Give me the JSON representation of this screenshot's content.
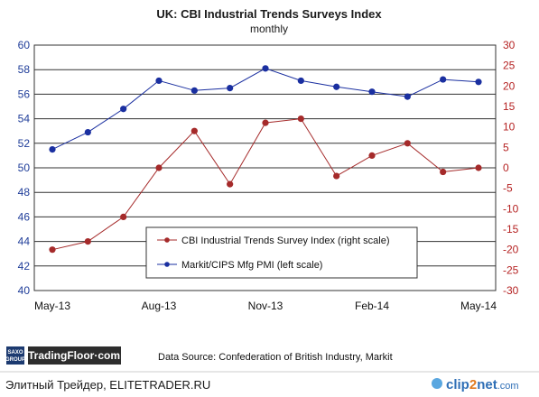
{
  "chart_data": {
    "type": "line",
    "title": "UK: CBI Industrial Trends Surveys Index",
    "subtitle": "monthly",
    "x": [
      "May-13",
      "Jun-13",
      "Jul-13",
      "Aug-13",
      "Sep-13",
      "Oct-13",
      "Nov-13",
      "Dec-13",
      "Jan-14",
      "Feb-14",
      "Mar-14",
      "Apr-14",
      "May-14"
    ],
    "x_tick_labels": [
      "May-13",
      "Aug-13",
      "Nov-13",
      "Feb-14",
      "May-14"
    ],
    "y_left": {
      "ticks": [
        "60",
        "58",
        "56",
        "54",
        "52",
        "50",
        "48",
        "46",
        "44",
        "42",
        "40"
      ],
      "range": [
        40,
        60
      ]
    },
    "y_right": {
      "ticks": [
        "30",
        "25",
        "20",
        "15",
        "10",
        "5",
        "0",
        "-5",
        "-10",
        "-15",
        "-20",
        "-25",
        "-30"
      ],
      "range": [
        -30,
        30
      ]
    },
    "grid": true,
    "legend_position": "center-bottom",
    "series": [
      {
        "name": "CBI Industrial Trends Survey Index (right scale)",
        "axis": "right",
        "color": "#a52a2a",
        "values": [
          -20,
          -18,
          -12,
          0,
          9,
          -4,
          11,
          12,
          -2,
          3,
          6,
          -1,
          0
        ]
      },
      {
        "name": "Markit/CIPS Mfg PMI (left scale)",
        "axis": "left",
        "color": "#1a2fa0",
        "values": [
          51.5,
          52.9,
          54.8,
          57.1,
          56.3,
          56.5,
          58.1,
          57.1,
          56.6,
          56.2,
          55.8,
          57.2,
          57.0
        ]
      }
    ]
  },
  "footer": {
    "source": "Data Source: Confederation of British Industry, Markit",
    "brand_saxo": "SAXO",
    "brand_group": "GROUP",
    "brand_tradingfloor": "TradingFloor·com",
    "watermark_left": "Элитный Трейдер, ELITETRADER.RU",
    "watermark_right_1": "clip",
    "watermark_right_2": "2",
    "watermark_right_3": "net",
    "watermark_right_4": ".com"
  }
}
